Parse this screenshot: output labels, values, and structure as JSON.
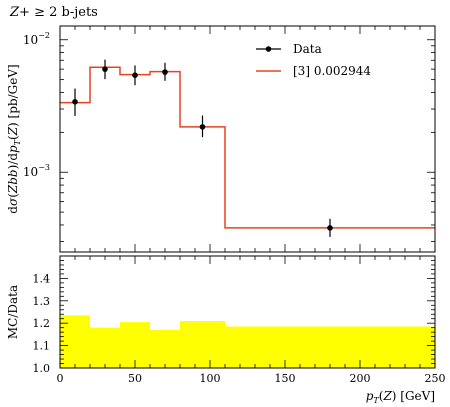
{
  "chart_data": [
    {
      "type": "line",
      "title": "Z+ ≥ 2 b-jets",
      "ylabel": "dσ(Zbb)/dp_T(Z) [pb/GeV]",
      "xlabel": "p_T(Z) [GeV]",
      "xlim": [
        0,
        250
      ],
      "ylim": [
        0.00025,
        0.0127
      ],
      "yscale": "log",
      "y_major_ticks": [
        {
          "value": 0.001,
          "label": "10^-3"
        },
        {
          "value": 0.01,
          "label": "10^-2"
        }
      ],
      "legend_position": "top-right",
      "data": {
        "name": "Data",
        "points": [
          {
            "x": 10,
            "y": 0.0034,
            "err_lo": 0.00074,
            "err_hi": 0.00088
          },
          {
            "x": 30,
            "y": 0.006,
            "err_lo": 0.00096,
            "err_hi": 0.00108
          },
          {
            "x": 50,
            "y": 0.0054,
            "err_lo": 0.00086,
            "err_hi": 0.001
          },
          {
            "x": 70,
            "y": 0.0057,
            "err_lo": 0.0008,
            "err_hi": 0.001
          },
          {
            "x": 95,
            "y": 0.0022,
            "err_lo": 0.00036,
            "err_hi": 0.00048
          },
          {
            "x": 180,
            "y": 0.00038,
            "err_lo": 5.5e-05,
            "err_hi": 6.5e-05
          }
        ]
      },
      "mc": {
        "name": "[3] 0.002944",
        "color": "#e8431e",
        "bins": [
          {
            "lo": 0,
            "hi": 20,
            "y": 0.00335
          },
          {
            "lo": 20,
            "hi": 40,
            "y": 0.0062
          },
          {
            "lo": 40,
            "hi": 60,
            "y": 0.00545
          },
          {
            "lo": 60,
            "hi": 80,
            "y": 0.00575
          },
          {
            "lo": 80,
            "hi": 110,
            "y": 0.0022
          },
          {
            "lo": 110,
            "hi": 250,
            "y": 0.00038
          }
        ]
      }
    },
    {
      "type": "area",
      "ylabel": "MC/Data",
      "xlabel": "p_T(Z) [GeV]",
      "xlim": [
        0,
        250
      ],
      "ylim": [
        1.0,
        1.5
      ],
      "x_tick_labels": [
        "0",
        "50",
        "100",
        "150",
        "200",
        "250"
      ],
      "y_tick_labels": [
        "1.0",
        "1.1",
        "1.2",
        "1.3",
        "1.4"
      ],
      "band_color": "#ffff00",
      "band": [
        {
          "lo": 0,
          "hi": 20,
          "y": 1.235
        },
        {
          "lo": 20,
          "hi": 40,
          "y": 1.18
        },
        {
          "lo": 40,
          "hi": 60,
          "y": 1.205
        },
        {
          "lo": 60,
          "hi": 80,
          "y": 1.17
        },
        {
          "lo": 80,
          "hi": 110,
          "y": 1.21
        },
        {
          "lo": 110,
          "hi": 250,
          "y": 1.185
        }
      ]
    }
  ]
}
